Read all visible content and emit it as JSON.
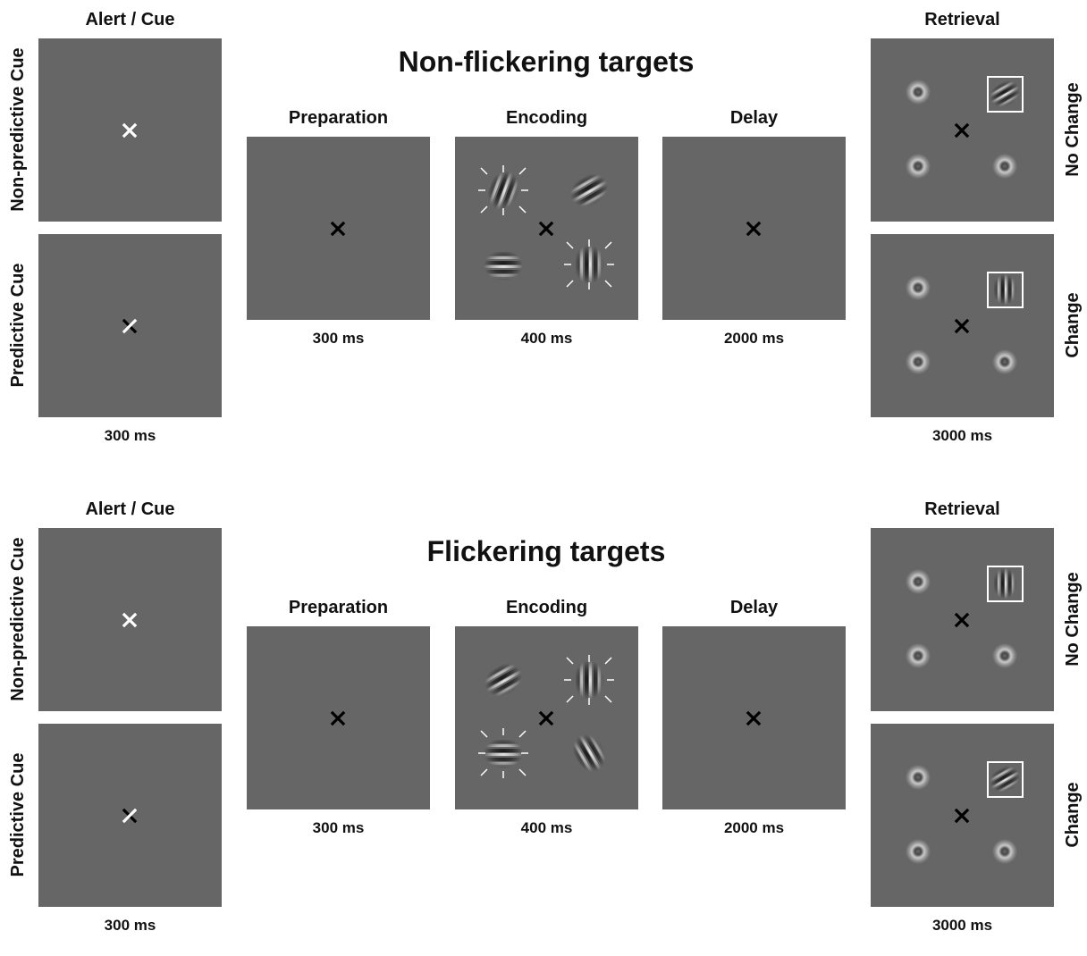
{
  "sections": [
    {
      "title": "Non-flickering targets",
      "alert": {
        "label": "Alert / Cue",
        "row_labels": [
          "Non-predictive Cue",
          "Predictive Cue"
        ],
        "time": "300 ms"
      },
      "preparation": {
        "label": "Preparation",
        "time": "300 ms"
      },
      "encoding": {
        "label": "Encoding",
        "time": "400 ms"
      },
      "delay": {
        "label": "Delay",
        "time": "2000 ms"
      },
      "retrieval": {
        "label": "Retrieval",
        "row_labels": [
          "No Change",
          "Change"
        ],
        "time": "3000 ms"
      }
    },
    {
      "title": "Flickering targets",
      "alert": {
        "label": "Alert / Cue",
        "row_labels": [
          "Non-predictive Cue",
          "Predictive Cue"
        ],
        "time": "300 ms"
      },
      "preparation": {
        "label": "Preparation",
        "time": "300 ms"
      },
      "encoding": {
        "label": "Encoding",
        "time": "400 ms"
      },
      "delay": {
        "label": "Delay",
        "time": "2000 ms"
      },
      "retrieval": {
        "label": "Retrieval",
        "row_labels": [
          "No Change",
          "Change"
        ],
        "time": "3000 ms"
      }
    }
  ],
  "colors": {
    "panel_gray": "#666666",
    "fixation_black": "#000000",
    "cue_white": "#ffffff"
  }
}
